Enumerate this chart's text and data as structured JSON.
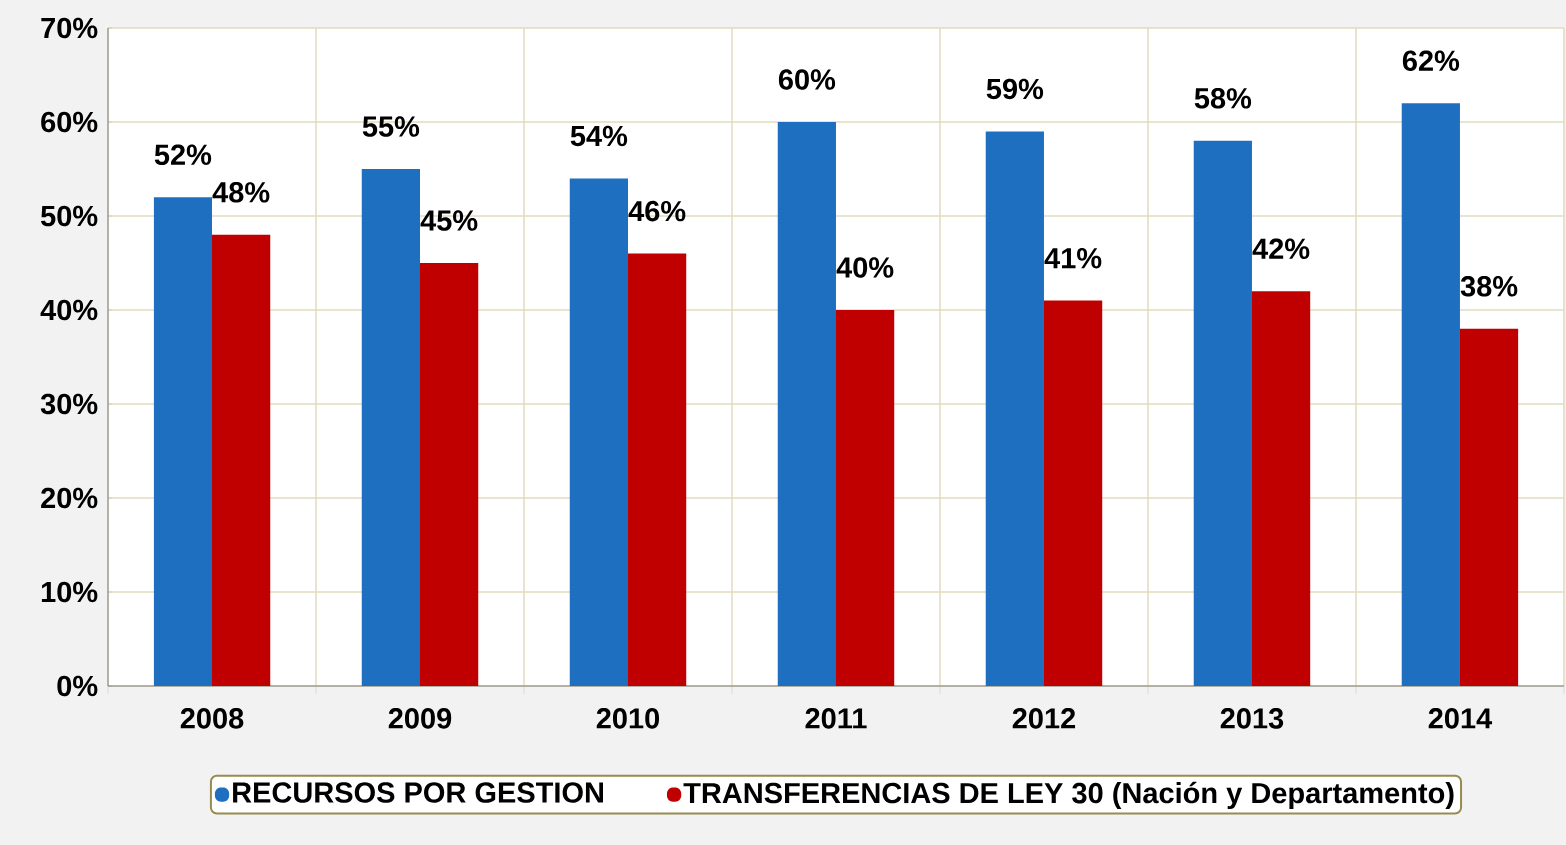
{
  "chart_data": {
    "type": "bar",
    "categories": [
      "2008",
      "2009",
      "2010",
      "2011",
      "2012",
      "2013",
      "2014"
    ],
    "series": [
      {
        "name": "RECURSOS POR GESTION",
        "color": "#1f6fc0",
        "values": [
          52,
          55,
          54,
          60,
          59,
          58,
          62
        ]
      },
      {
        "name": "TRANSFERENCIAS DE LEY 30 (Nación y Departamento)",
        "color": "#c00000",
        "values": [
          48,
          45,
          46,
          40,
          41,
          42,
          38
        ]
      }
    ],
    "ylim": [
      0,
      70
    ],
    "yticks": [
      {
        "value": 0,
        "label": "0%"
      },
      {
        "value": 10,
        "label": "10%"
      },
      {
        "value": 20,
        "label": "20%"
      },
      {
        "value": 30,
        "label": "30%"
      },
      {
        "value": 40,
        "label": "40%"
      },
      {
        "value": 50,
        "label": "50%"
      },
      {
        "value": 60,
        "label": "60%"
      },
      {
        "value": 70,
        "label": "70%"
      }
    ],
    "value_labels": [
      [
        "52%",
        "55%",
        "54%",
        "60%",
        "59%",
        "58%",
        "62%"
      ],
      [
        "48%",
        "45%",
        "46%",
        "40%",
        "41%",
        "42%",
        "38%"
      ]
    ],
    "grid": true,
    "legend": "bottom"
  }
}
